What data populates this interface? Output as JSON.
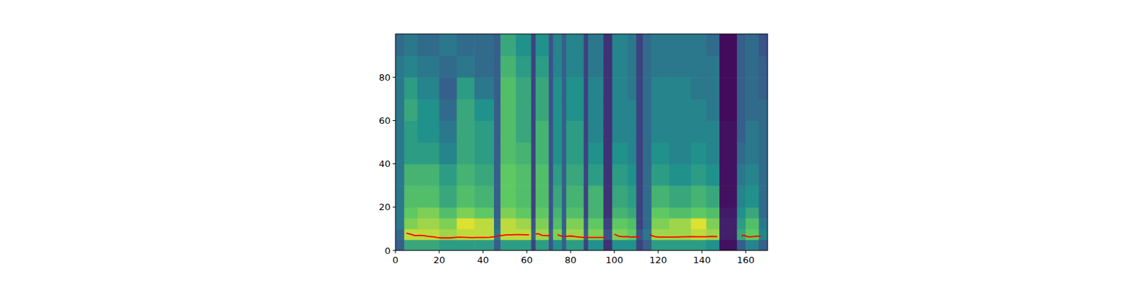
{
  "chart_data": {
    "type": "heatmap",
    "xlim": [
      0,
      170
    ],
    "ylim": [
      0,
      100
    ],
    "xticks": [
      0,
      20,
      40,
      60,
      80,
      100,
      120,
      140,
      160
    ],
    "yticks": [
      0,
      20,
      40,
      60,
      80
    ],
    "heatmap": {
      "zlim": [
        0,
        1
      ],
      "x_edges": [
        0,
        4,
        10,
        20,
        28,
        36,
        45,
        48,
        55,
        62,
        64,
        70,
        72,
        76,
        78,
        86,
        88,
        95,
        99,
        106,
        110,
        113,
        117,
        125,
        135,
        142,
        148,
        156,
        160,
        166,
        170
      ],
      "y_edges": [
        0,
        5,
        10,
        15,
        20,
        30,
        40,
        50,
        60,
        70,
        80,
        90,
        100
      ],
      "cells": [
        [
          0.3,
          0.35,
          0.4,
          0.4,
          0.4,
          0.4,
          0.4,
          0.4,
          0.4,
          0.4,
          0.4,
          0.35
        ],
        [
          0.6,
          0.9,
          0.8,
          0.75,
          0.7,
          0.65,
          0.55,
          0.55,
          0.6,
          0.55,
          0.45,
          0.4
        ],
        [
          0.6,
          0.9,
          0.85,
          0.8,
          0.7,
          0.65,
          0.55,
          0.5,
          0.5,
          0.45,
          0.4,
          0.35
        ],
        [
          0.55,
          0.85,
          0.8,
          0.7,
          0.6,
          0.55,
          0.45,
          0.4,
          0.35,
          0.3,
          0.35,
          0.4
        ],
        [
          0.55,
          0.9,
          0.95,
          0.8,
          0.7,
          0.65,
          0.6,
          0.6,
          0.6,
          0.55,
          0.4,
          0.35
        ],
        [
          0.55,
          0.9,
          0.9,
          0.75,
          0.65,
          0.6,
          0.55,
          0.55,
          0.5,
          0.4,
          0.35,
          0.35
        ],
        [
          0.3,
          0.4,
          0.35,
          0.3,
          0.3,
          0.3,
          0.3,
          0.3,
          0.3,
          0.3,
          0.3,
          0.3
        ],
        [
          0.55,
          0.9,
          0.9,
          0.8,
          0.75,
          0.75,
          0.7,
          0.7,
          0.7,
          0.7,
          0.65,
          0.6
        ],
        [
          0.55,
          0.9,
          0.85,
          0.75,
          0.7,
          0.7,
          0.65,
          0.6,
          0.6,
          0.6,
          0.55,
          0.5
        ],
        [
          0.2,
          0.3,
          0.25,
          0.2,
          0.2,
          0.2,
          0.2,
          0.2,
          0.2,
          0.2,
          0.2,
          0.2
        ],
        [
          0.55,
          0.85,
          0.8,
          0.75,
          0.7,
          0.7,
          0.65,
          0.65,
          0.6,
          0.6,
          0.55,
          0.5
        ],
        [
          0.25,
          0.3,
          0.25,
          0.25,
          0.25,
          0.25,
          0.25,
          0.25,
          0.25,
          0.25,
          0.25,
          0.25
        ],
        [
          0.5,
          0.8,
          0.7,
          0.65,
          0.6,
          0.55,
          0.5,
          0.5,
          0.5,
          0.5,
          0.45,
          0.45
        ],
        [
          0.3,
          0.35,
          0.3,
          0.3,
          0.3,
          0.3,
          0.3,
          0.3,
          0.3,
          0.3,
          0.3,
          0.3
        ],
        [
          0.55,
          0.85,
          0.8,
          0.7,
          0.65,
          0.6,
          0.55,
          0.55,
          0.5,
          0.5,
          0.45,
          0.45
        ],
        [
          0.2,
          0.3,
          0.25,
          0.2,
          0.2,
          0.2,
          0.2,
          0.2,
          0.2,
          0.2,
          0.2,
          0.2
        ],
        [
          0.5,
          0.8,
          0.75,
          0.65,
          0.65,
          0.55,
          0.5,
          0.45,
          0.45,
          0.45,
          0.4,
          0.4
        ],
        [
          0.15,
          0.25,
          0.2,
          0.15,
          0.15,
          0.15,
          0.15,
          0.15,
          0.15,
          0.15,
          0.15,
          0.15
        ],
        [
          0.5,
          0.8,
          0.75,
          0.65,
          0.6,
          0.55,
          0.5,
          0.45,
          0.45,
          0.45,
          0.45,
          0.45
        ],
        [
          0.5,
          0.75,
          0.7,
          0.6,
          0.55,
          0.5,
          0.45,
          0.45,
          0.45,
          0.4,
          0.4,
          0.4
        ],
        [
          0.2,
          0.25,
          0.2,
          0.2,
          0.2,
          0.2,
          0.2,
          0.2,
          0.2,
          0.2,
          0.2,
          0.2
        ],
        [
          0.3,
          0.4,
          0.35,
          0.35,
          0.35,
          0.35,
          0.35,
          0.35,
          0.35,
          0.35,
          0.35,
          0.35
        ],
        [
          0.55,
          0.85,
          0.8,
          0.75,
          0.65,
          0.55,
          0.5,
          0.45,
          0.45,
          0.45,
          0.4,
          0.4
        ],
        [
          0.55,
          0.85,
          0.85,
          0.7,
          0.6,
          0.5,
          0.45,
          0.45,
          0.45,
          0.45,
          0.4,
          0.4
        ],
        [
          0.55,
          0.9,
          0.95,
          0.75,
          0.65,
          0.55,
          0.5,
          0.45,
          0.45,
          0.4,
          0.4,
          0.4
        ],
        [
          0.5,
          0.85,
          0.8,
          0.7,
          0.6,
          0.5,
          0.45,
          0.45,
          0.4,
          0.4,
          0.4,
          0.35
        ],
        [
          0.05,
          0.1,
          0.1,
          0.08,
          0.05,
          0.05,
          0.05,
          0.05,
          0.03,
          0.03,
          0.03,
          0.03
        ],
        [
          0.3,
          0.6,
          0.55,
          0.5,
          0.45,
          0.4,
          0.35,
          0.3,
          0.3,
          0.3,
          0.3,
          0.3
        ],
        [
          0.45,
          0.75,
          0.7,
          0.6,
          0.5,
          0.45,
          0.4,
          0.4,
          0.35,
          0.35,
          0.35,
          0.35
        ],
        [
          0.3,
          0.45,
          0.4,
          0.35,
          0.35,
          0.35,
          0.35,
          0.35,
          0.35,
          0.3,
          0.3,
          0.25
        ]
      ]
    },
    "series": [
      {
        "type": "line",
        "color": "#ff0000",
        "x": [
          5,
          7,
          9,
          11,
          13,
          15,
          17,
          19,
          21,
          23,
          25,
          27,
          29,
          31,
          33,
          35,
          37,
          39,
          41,
          43,
          45,
          47,
          49,
          51,
          53,
          55,
          57,
          59,
          61,
          63,
          64,
          65,
          67,
          69,
          71,
          72.5,
          74,
          76,
          78,
          80,
          82,
          84,
          86,
          88,
          90,
          92,
          94,
          96,
          98,
          100,
          102,
          104,
          106,
          108,
          110,
          111.5,
          114,
          116,
          118,
          120,
          124,
          128,
          132,
          136,
          138,
          140,
          142,
          144,
          147,
          152,
          158,
          159,
          161,
          163,
          165,
          167
        ],
        "values": [
          8,
          7.5,
          6.8,
          7,
          6.8,
          6.5,
          6.3,
          6,
          5.8,
          5.8,
          5.8,
          6,
          6.2,
          6.1,
          6,
          5.9,
          6,
          6,
          6,
          6.1,
          6.3,
          6.7,
          7,
          7.2,
          7.2,
          7.3,
          7.3,
          7.2,
          7.2,
          null,
          7.5,
          7.8,
          7,
          6.8,
          6.8,
          null,
          7.2,
          6.6,
          6.5,
          6.7,
          6.4,
          6.2,
          6,
          6,
          6,
          6,
          6,
          6,
          null,
          7.5,
          6.6,
          6.3,
          6.4,
          6.2,
          6.3,
          6.2,
          null,
          7.3,
          6.5,
          6.2,
          6.2,
          6.2,
          6.3,
          6.4,
          6.3,
          6.3,
          6.3,
          6.5,
          6.4,
          null,
          6.6,
          7,
          6.3,
          6.3,
          6.6,
          6.6
        ]
      }
    ]
  }
}
